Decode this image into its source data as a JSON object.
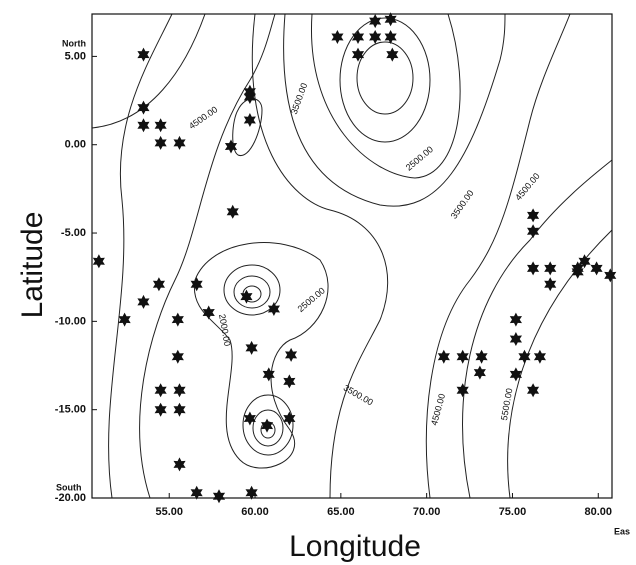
{
  "chart_data": {
    "type": "scatter",
    "x_label": "Longitude",
    "y_label": "Latitude",
    "xlim": [
      50.5,
      80.8
    ],
    "ylim": [
      -20,
      7.4
    ],
    "xticks": [
      {
        "value": 55,
        "label": "55.00"
      },
      {
        "value": 60,
        "label": "60.00"
      },
      {
        "value": 65,
        "label": "65.00"
      },
      {
        "value": 70,
        "label": "70.00"
      },
      {
        "value": 75,
        "label": "75.00"
      },
      {
        "value": 80,
        "label": "80.00"
      }
    ],
    "yticks": [
      {
        "value": -20,
        "label": "-20.00"
      },
      {
        "value": -15,
        "label": "-15.00"
      },
      {
        "value": -10,
        "label": "-10.00"
      },
      {
        "value": -5,
        "label": "-5.00"
      },
      {
        "value": 0,
        "label": "0.00"
      },
      {
        "value": 5,
        "label": "5.00"
      }
    ],
    "corner_labels": {
      "north": "North",
      "south": "South",
      "east": "Eas"
    },
    "series": [
      {
        "color": "#111111",
        "x": [
          53.5,
          53.5,
          53.5,
          54.5,
          54.5,
          55.6,
          59.7,
          59.7,
          59.7,
          58.6,
          58.7,
          50.9,
          54.4,
          53.5,
          52.4,
          56.6,
          57.3,
          59.5,
          61.1,
          55.5,
          55.5,
          54.5,
          55.6,
          54.5,
          55.6,
          59.8,
          62.1,
          60.8,
          62.0,
          59.7,
          60.7,
          62.0,
          55.6,
          56.6,
          57.9,
          59.8,
          64.8,
          66.0,
          67.0,
          67.9,
          67.0,
          67.9,
          66.0,
          68.0,
          71.0,
          72.1,
          73.2,
          73.1,
          72.1,
          75.2,
          75.2,
          75.2,
          75.7,
          76.6,
          76.2,
          76.2,
          76.2,
          76.2,
          77.2,
          77.2,
          78.8,
          79.2,
          79.9,
          80.7,
          78.8
        ],
        "values": [
          5.1,
          2.1,
          1.1,
          1.1,
          0.1,
          0.1,
          3.0,
          2.7,
          1.4,
          -0.1,
          -3.8,
          -6.6,
          -7.9,
          -8.9,
          -9.9,
          -7.9,
          -9.5,
          -8.6,
          -9.3,
          -9.9,
          -12.0,
          -13.9,
          -13.9,
          -15.0,
          -15.0,
          -11.5,
          -11.9,
          -13.0,
          -13.4,
          -15.5,
          -15.9,
          -15.5,
          -18.1,
          -19.7,
          -19.9,
          -19.7,
          6.1,
          6.1,
          7.0,
          7.1,
          6.1,
          6.1,
          5.1,
          5.1,
          -12.0,
          -12.0,
          -12.0,
          -12.9,
          -13.9,
          -9.9,
          -11.0,
          -13.0,
          -12.0,
          -12.0,
          -13.9,
          -4.0,
          -4.9,
          -7.0,
          -7.0,
          -7.9,
          -7.2,
          -6.6,
          -7.0,
          -7.4,
          -7.0
        ]
      }
    ],
    "contour_labels": [
      {
        "label": "4500.00",
        "x": 57.0,
        "y": 1.5
      },
      {
        "label": "3500.00",
        "x": 62.6,
        "y": 2.6
      },
      {
        "label": "2500.00",
        "x": 69.6,
        "y": -0.8
      },
      {
        "label": "3500.00",
        "x": 72.1,
        "y": -3.4
      },
      {
        "label": "4500.00",
        "x": 75.9,
        "y": -2.4
      },
      {
        "label": "2500.00",
        "x": 63.3,
        "y": -8.8
      },
      {
        "label": "2000.00",
        "x": 58.2,
        "y": -10.5
      },
      {
        "label": "3500.00",
        "x": 66.0,
        "y": -14.2
      },
      {
        "label": "4500.00",
        "x": 70.7,
        "y": -15.0
      },
      {
        "label": "5500.00",
        "x": 74.7,
        "y": -14.7
      }
    ]
  }
}
